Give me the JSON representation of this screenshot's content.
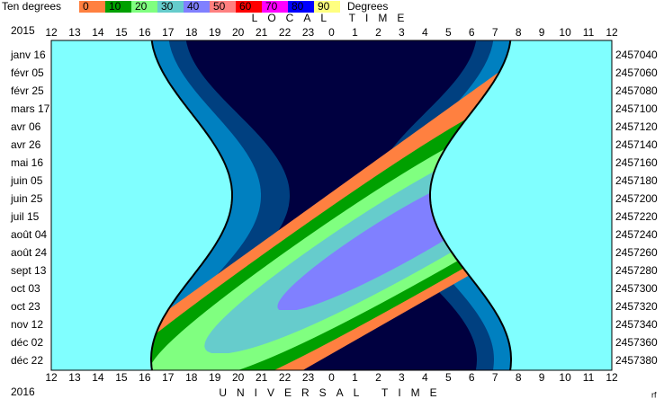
{
  "chart_data": {
    "type": "contour",
    "legend_title": "Ten degrees",
    "legend_unit": "Degrees",
    "legend_levels": [
      0,
      10,
      20,
      30,
      40,
      50,
      60,
      70,
      80,
      90
    ],
    "legend_colors": [
      "#ff8040",
      "#00a000",
      "#80ff80",
      "#66cccc",
      "#8080ff",
      "#ff8080",
      "#ff0000",
      "#ff00ff",
      "#0000ff",
      "#ffff80"
    ],
    "top_title": "LOCAL TIME",
    "bottom_title": "UNIVERSAL TIME",
    "start_year": "2015",
    "end_year": "2016",
    "credit": "rf",
    "local_hours": [
      12,
      13,
      14,
      15,
      16,
      17,
      18,
      19,
      20,
      21,
      22,
      23,
      0,
      1,
      2,
      3,
      4,
      5,
      6,
      7,
      8,
      9,
      10,
      11,
      12
    ],
    "universal_hours": [
      12,
      13,
      14,
      15,
      16,
      17,
      18,
      19,
      20,
      21,
      22,
      23,
      0,
      1,
      2,
      3,
      4,
      5,
      6,
      7,
      8,
      9,
      10,
      11,
      12
    ],
    "dates": [
      "janv 16",
      "févr 05",
      "févr 25",
      "mars 17",
      "avr 06",
      "avr 26",
      "mai 16",
      "juin 05",
      "juin 25",
      "juil 15",
      "août 04",
      "août 24",
      "sept 13",
      "oct 03",
      "oct 23",
      "nov 12",
      "déc 02",
      "déc 22"
    ],
    "julian_days": [
      2457040,
      2457060,
      2457080,
      2457100,
      2457120,
      2457140,
      2457160,
      2457180,
      2457200,
      2457220,
      2457240,
      2457260,
      2457280,
      2457300,
      2457320,
      2457340,
      2457360,
      2457380
    ]
  }
}
